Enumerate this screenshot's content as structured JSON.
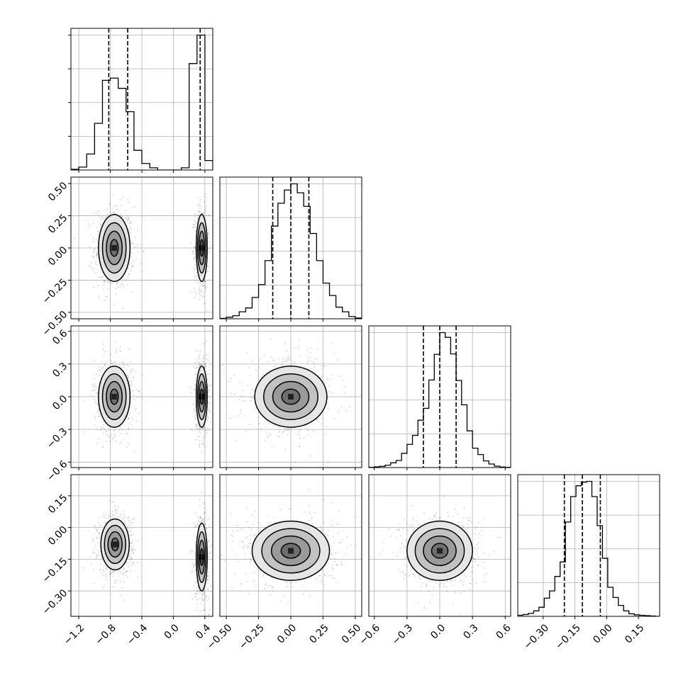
{
  "chart_data": {
    "type": "corner",
    "grid": true,
    "variables": [
      {
        "range": [
          -1.3,
          0.5
        ],
        "ticks": [
          -1.2,
          -0.8,
          -0.4,
          0.0,
          0.4
        ],
        "tick_labels": [
          "−1.2",
          "−0.8",
          "−0.4",
          "0.0",
          "0.4"
        ]
      },
      {
        "range": [
          -0.55,
          0.55
        ],
        "ticks": [
          -0.5,
          -0.25,
          0.0,
          0.25,
          0.5
        ],
        "tick_labels": [
          "−0.50",
          "−0.25",
          "0.00",
          "0.25",
          "0.50"
        ]
      },
      {
        "range": [
          -0.65,
          0.65
        ],
        "ticks": [
          -0.6,
          -0.3,
          0.0,
          0.3,
          0.6
        ],
        "tick_labels": [
          "−0.6",
          "−0.3",
          "0.0",
          "0.3",
          "0.6"
        ]
      },
      {
        "range": [
          -0.42,
          0.25
        ],
        "ticks": [
          -0.3,
          -0.15,
          0.0,
          0.15
        ],
        "tick_labels": [
          "−0.30",
          "−0.15",
          "0.00",
          "0.15"
        ]
      }
    ],
    "histograms": [
      {
        "bins": [
          -1.3,
          -1.2,
          -1.1,
          -1.0,
          -0.9,
          -0.8,
          -0.7,
          -0.6,
          -0.5,
          -0.4,
          -0.3,
          -0.2,
          -0.1,
          0.0,
          0.1,
          0.2,
          0.3,
          0.4,
          0.5
        ],
        "counts": [
          1,
          4,
          22,
          64,
          123,
          126,
          112,
          80,
          27,
          9,
          3,
          0,
          0,
          0,
          3,
          146,
          185,
          13
        ],
        "quantiles": [
          -0.82,
          -0.58,
          0.34
        ]
      },
      {
        "bins": [
          -0.55,
          -0.5,
          -0.45,
          -0.4,
          -0.35,
          -0.3,
          -0.25,
          -0.2,
          -0.15,
          -0.1,
          -0.05,
          0.0,
          0.05,
          0.1,
          0.15,
          0.2,
          0.25,
          0.3,
          0.35,
          0.4,
          0.45,
          0.5,
          0.55
        ],
        "counts": [
          1,
          4,
          8,
          18,
          28,
          55,
          88,
          150,
          239,
          298,
          332,
          348,
          325,
          290,
          220,
          150,
          92,
          60,
          30,
          18,
          6,
          2
        ],
        "quantiles": [
          -0.14,
          0.0,
          0.14
        ]
      },
      {
        "bins": [
          -0.65,
          -0.6,
          -0.55,
          -0.5,
          -0.45,
          -0.4,
          -0.35,
          -0.3,
          -0.25,
          -0.2,
          -0.15,
          -0.1,
          -0.05,
          0.0,
          0.05,
          0.1,
          0.15,
          0.2,
          0.25,
          0.3,
          0.35,
          0.4,
          0.45,
          0.5,
          0.55,
          0.6,
          0.65
        ],
        "counts": [
          1,
          3,
          5,
          10,
          20,
          30,
          60,
          98,
          136,
          200,
          250,
          370,
          478,
          570,
          550,
          480,
          368,
          265,
          155,
          82,
          55,
          28,
          15,
          6,
          2,
          1
        ],
        "quantiles": [
          -0.15,
          0.0,
          0.15
        ]
      },
      {
        "bins": [
          -0.42,
          -0.395,
          -0.37,
          -0.345,
          -0.32,
          -0.295,
          -0.27,
          -0.245,
          -0.22,
          -0.195,
          -0.17,
          -0.145,
          -0.12,
          -0.095,
          -0.07,
          -0.045,
          -0.02,
          0.005,
          0.03,
          0.055,
          0.08,
          0.105,
          0.13,
          0.155,
          0.18,
          0.205,
          0.23,
          0.255
        ],
        "counts": [
          3,
          5,
          8,
          15,
          25,
          50,
          70,
          110,
          150,
          260,
          330,
          360,
          370,
          372,
          330,
          250,
          160,
          80,
          52,
          30,
          15,
          7,
          4,
          3,
          2,
          1,
          0
        ],
        "quantiles": [
          -0.2,
          -0.115,
          -0.03
        ]
      }
    ],
    "pair_panels": [
      {
        "x_var": 0,
        "y_var": 1,
        "modes": [
          {
            "x": -0.75,
            "y": 0.0,
            "sx": 0.1,
            "sy": 0.13
          },
          {
            "x": 0.36,
            "y": 0.0,
            "sx": 0.035,
            "sy": 0.13
          }
        ]
      },
      {
        "x_var": 0,
        "y_var": 2,
        "modes": [
          {
            "x": -0.75,
            "y": 0.0,
            "sx": 0.1,
            "sy": 0.14
          },
          {
            "x": 0.36,
            "y": 0.0,
            "sx": 0.035,
            "sy": 0.14
          }
        ]
      },
      {
        "x_var": 1,
        "y_var": 2,
        "modes": [
          {
            "x": 0.0,
            "y": 0.0,
            "sx": 0.14,
            "sy": 0.14
          }
        ]
      },
      {
        "x_var": 0,
        "y_var": 3,
        "modes": [
          {
            "x": -0.74,
            "y": -0.08,
            "sx": 0.09,
            "sy": 0.06
          },
          {
            "x": 0.36,
            "y": -0.14,
            "sx": 0.035,
            "sy": 0.08
          }
        ]
      },
      {
        "x_var": 1,
        "y_var": 3,
        "modes": [
          {
            "x": 0.0,
            "y": -0.11,
            "sx": 0.15,
            "sy": 0.07
          }
        ]
      },
      {
        "x_var": 2,
        "y_var": 3,
        "modes": [
          {
            "x": 0.0,
            "y": -0.11,
            "sx": 0.15,
            "sy": 0.07
          }
        ]
      }
    ],
    "contour_levels_sigma": [
      0.5,
      1.0,
      1.5,
      2.0
    ]
  }
}
